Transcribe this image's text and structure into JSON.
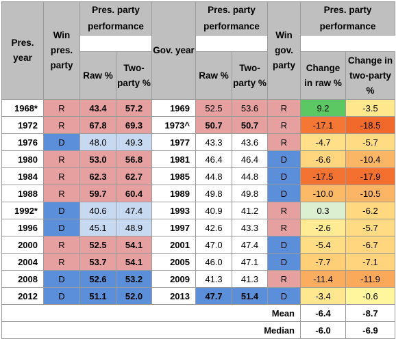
{
  "headers": {
    "pres_year": "Pres. year",
    "win_pres_party": "Win pres. party",
    "pres_party_performance": "Pres. party performance",
    "raw_pct": "Raw %",
    "two_party_pct": "Two-party %",
    "gov_year": "Gov. year",
    "win_gov_party": "Win gov. party",
    "change_raw": "Change in raw %",
    "change_two_party": "Change in two-party %"
  },
  "rows": [
    {
      "pres_year": "1968*",
      "pres_win": "R",
      "pres_raw": "43.4",
      "pres_two": "57.2",
      "gov_year": "1969",
      "gov_raw": "52.5",
      "gov_two": "53.6",
      "gov_win": "R",
      "chg_raw": "9.2",
      "chg_two": "-3.5"
    },
    {
      "pres_year": "1972",
      "pres_win": "R",
      "pres_raw": "67.8",
      "pres_two": "69.3",
      "gov_year": "1973^",
      "gov_raw": "50.7",
      "gov_two": "50.7",
      "gov_win": "R",
      "chg_raw": "-17.1",
      "chg_two": "-18.5"
    },
    {
      "pres_year": "1976",
      "pres_win": "D",
      "pres_raw": "48.0",
      "pres_two": "49.3",
      "gov_year": "1977",
      "gov_raw": "43.3",
      "gov_two": "43.6",
      "gov_win": "R",
      "chg_raw": "-4.7",
      "chg_two": "-5.7"
    },
    {
      "pres_year": "1980",
      "pres_win": "R",
      "pres_raw": "53.0",
      "pres_two": "56.8",
      "gov_year": "1981",
      "gov_raw": "46.4",
      "gov_two": "46.4",
      "gov_win": "D",
      "chg_raw": "-6.6",
      "chg_two": "-10.4"
    },
    {
      "pres_year": "1984",
      "pres_win": "R",
      "pres_raw": "62.3",
      "pres_two": "62.7",
      "gov_year": "1985",
      "gov_raw": "44.8",
      "gov_two": "44.8",
      "gov_win": "D",
      "chg_raw": "-17.5",
      "chg_two": "-17.9"
    },
    {
      "pres_year": "1988",
      "pres_win": "R",
      "pres_raw": "59.7",
      "pres_two": "60.4",
      "gov_year": "1989",
      "gov_raw": "49.8",
      "gov_two": "49.8",
      "gov_win": "D",
      "chg_raw": "-10.0",
      "chg_two": "-10.5"
    },
    {
      "pres_year": "1992*",
      "pres_win": "D",
      "pres_raw": "40.6",
      "pres_two": "47.4",
      "gov_year": "1993",
      "gov_raw": "40.9",
      "gov_two": "41.2",
      "gov_win": "R",
      "chg_raw": "0.3",
      "chg_two": "-6.2"
    },
    {
      "pres_year": "1996",
      "pres_win": "D",
      "pres_raw": "45.1",
      "pres_two": "48.9",
      "gov_year": "1997",
      "gov_raw": "42.6",
      "gov_two": "43.3",
      "gov_win": "R",
      "chg_raw": "-2.6",
      "chg_two": "-5.7"
    },
    {
      "pres_year": "2000",
      "pres_win": "R",
      "pres_raw": "52.5",
      "pres_two": "54.1",
      "gov_year": "2001",
      "gov_raw": "47.0",
      "gov_two": "47.4",
      "gov_win": "D",
      "chg_raw": "-5.4",
      "chg_two": "-6.7"
    },
    {
      "pres_year": "2004",
      "pres_win": "R",
      "pres_raw": "53.7",
      "pres_two": "54.1",
      "gov_year": "2005",
      "gov_raw": "46.0",
      "gov_two": "47.1",
      "gov_win": "D",
      "chg_raw": "-7.7",
      "chg_two": "-7.1"
    },
    {
      "pres_year": "2008",
      "pres_win": "D",
      "pres_raw": "52.6",
      "pres_two": "53.2",
      "gov_year": "2009",
      "gov_raw": "41.3",
      "gov_two": "41.3",
      "gov_win": "R",
      "chg_raw": "-11.4",
      "chg_two": "-11.9"
    },
    {
      "pres_year": "2012",
      "pres_win": "D",
      "pres_raw": "51.1",
      "pres_two": "52.0",
      "gov_year": "2013",
      "gov_raw": "47.7",
      "gov_two": "51.4",
      "gov_win": "D",
      "chg_raw": "-3.4",
      "chg_two": "-0.6"
    }
  ],
  "summary": [
    {
      "label": "Mean",
      "chg_raw": "-6.4",
      "chg_two": "-8.7"
    },
    {
      "label": "Median",
      "chg_raw": "-6.0",
      "chg_two": "-6.9"
    }
  ],
  "colors": {
    "header_gray": "#bfbfbf",
    "republican": "#e6a0a0",
    "democrat_strong": "#5b8fd9",
    "democrat_light": "#c6d9f1",
    "change_positive_strong": "#5cc864",
    "change_positive_light": "#dcefd0",
    "change_scale_min": "#f26a2b",
    "change_scale_mid": "#ffd27a",
    "change_scale_max": "#fff9a0"
  }
}
